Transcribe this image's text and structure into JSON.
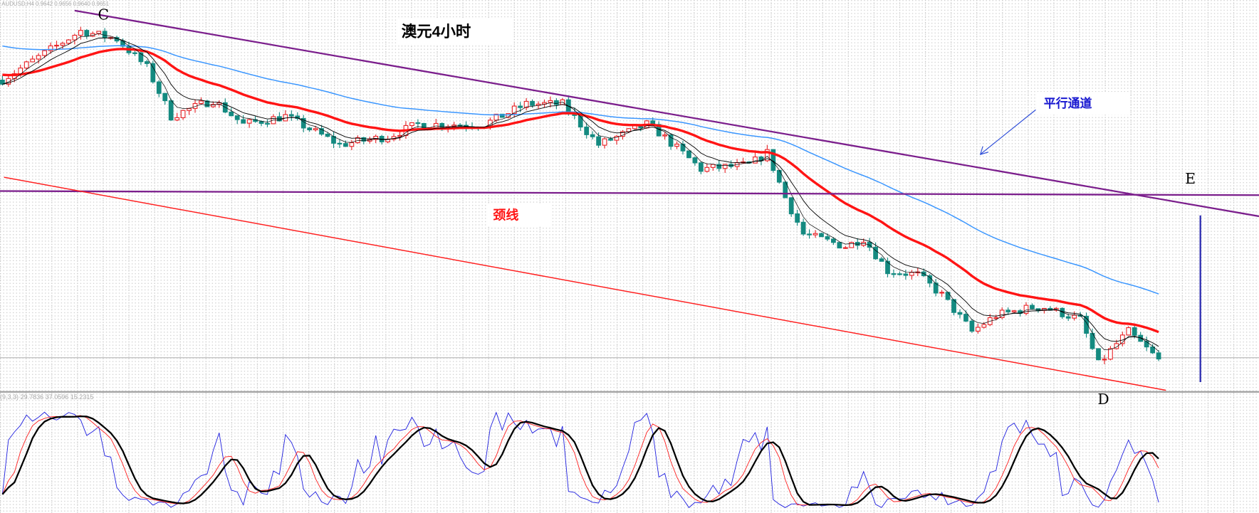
{
  "header": {
    "symbol_info": "AUDUSD,H4  0.9642 0.9656 0.9640 0.9651"
  },
  "indicator": {
    "label": "(9,3,3) 29.7836 37.0596 15.2315"
  },
  "annotations": {
    "point_c": "C",
    "point_d": "D",
    "point_e": "E",
    "title": "澳元4小时",
    "channel": "平行通道",
    "neckline": "颈线"
  },
  "colors": {
    "bull_outline": "#e8262a",
    "bear_fill": "#148a80",
    "ma_red": "#ff1414",
    "ma_blue": "#3a96ff",
    "trend_purple": "#7b1e8c",
    "channel_red": "#ff2020",
    "stoch_k": "#2020e0",
    "stoch_d": "#ff2020",
    "stoch_slow": "#000000"
  },
  "chart_data": {
    "type": "candlestick",
    "symbol": "AUDUSD",
    "timeframe": "H4",
    "title": "澳元4小时",
    "price_path_keypoints": [
      [
        0,
        0.9584
      ],
      [
        13,
        0.9704
      ],
      [
        19,
        0.9684
      ],
      [
        24,
        0.9614
      ],
      [
        28,
        0.9494
      ],
      [
        35,
        0.9534
      ],
      [
        40,
        0.9474
      ],
      [
        47,
        0.9494
      ],
      [
        56,
        0.9424
      ],
      [
        64,
        0.9444
      ],
      [
        69,
        0.9474
      ],
      [
        75,
        0.9474
      ],
      [
        80,
        0.9474
      ],
      [
        87,
        0.9524
      ],
      [
        93,
        0.9524
      ],
      [
        99,
        0.9424
      ],
      [
        107,
        0.9474
      ],
      [
        109,
        0.9454
      ],
      [
        116,
        0.9364
      ],
      [
        124,
        0.9374
      ],
      [
        127,
        0.9404
      ],
      [
        130,
        0.9294
      ],
      [
        133,
        0.9204
      ],
      [
        140,
        0.9174
      ],
      [
        143,
        0.9194
      ],
      [
        147,
        0.9114
      ],
      [
        152,
        0.9104
      ],
      [
        156,
        0.9054
      ],
      [
        161,
        0.8964
      ],
      [
        165,
        0.9004
      ],
      [
        171,
        0.9024
      ],
      [
        173,
        0.9024
      ],
      [
        179,
        0.8994
      ],
      [
        182,
        0.8884
      ],
      [
        185,
        0.8934
      ],
      [
        187,
        0.8964
      ],
      [
        192,
        0.8894
      ]
    ],
    "moving_averages": [
      "fast black",
      "black",
      "red (thick)",
      "blue"
    ],
    "indicator": {
      "type": "stochastic",
      "params": [
        9,
        3,
        3
      ],
      "values": [
        29.7836,
        37.0596,
        15.2315
      ]
    }
  }
}
